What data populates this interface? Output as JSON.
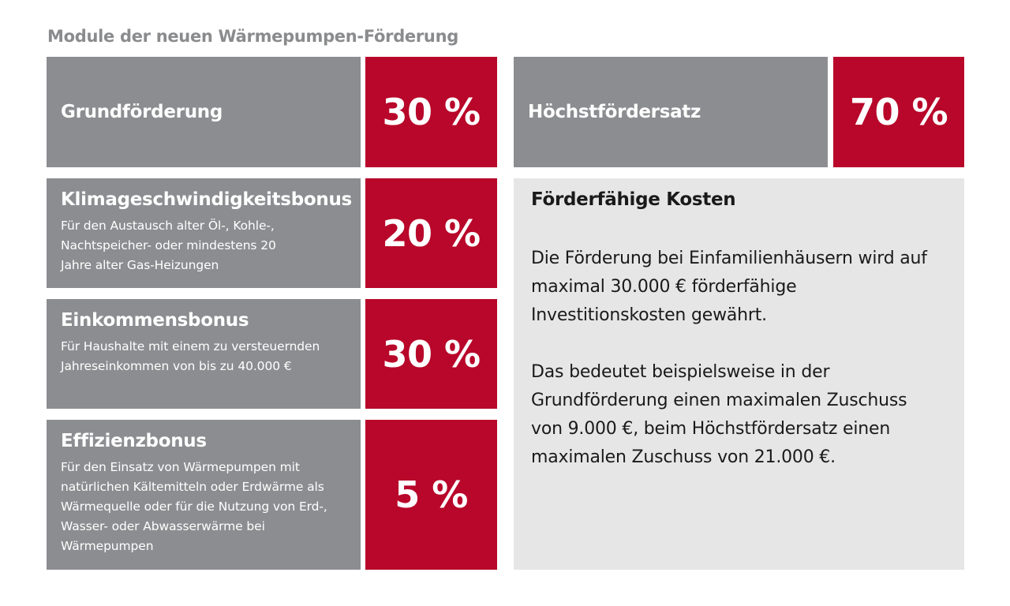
{
  "title": "Module der neuen Wärmepumpen-Förderung",
  "modules": [
    {
      "label": "Grundförderung",
      "description": "",
      "percent": "30 %"
    },
    {
      "label": "Klimageschwindigkeitsbonus",
      "description": "Für den Austausch alter Öl-, Kohle-, Nachtspeicher- oder mindestens 20 Jahre alter Gas-Heizungen",
      "percent": "20 %"
    },
    {
      "label": "Einkommensbonus",
      "description": "Für Haushalte mit einem zu versteuernden Jahreseinkommen von bis zu 40.000 €",
      "percent": "30 %"
    },
    {
      "label": "Effizienzbonus",
      "description": "Für den Einsatz von Wärmepumpen mit natürlichen Kältemitteln oder Erdwärme als Wärmequelle oder für die Nutzung von Erd-, Wasser- oder Abwasserwärme bei Wärmepumpen",
      "percent": "5 %"
    }
  ],
  "max_rate": {
    "label": "Höchstfördersatz",
    "percent": "70 %"
  },
  "costs": {
    "title": "Förderfähige Kosten",
    "paragraph1": "Die Förderung bei Einfamilienhäusern wird auf maximal 30.000 € förderfähige Investitionskosten gewährt.",
    "paragraph2": "Das bedeutet beispielsweise in der Grundförderung einen maximalen Zuschuss von 9.000 €, beim Höchstfördersatz einen maximalen Zuschuss von 21.000 €."
  },
  "colors": {
    "gray": "#8c8d90",
    "red": "#b8072a",
    "light": "#e6e6e6",
    "title": "#8a8b8d"
  }
}
